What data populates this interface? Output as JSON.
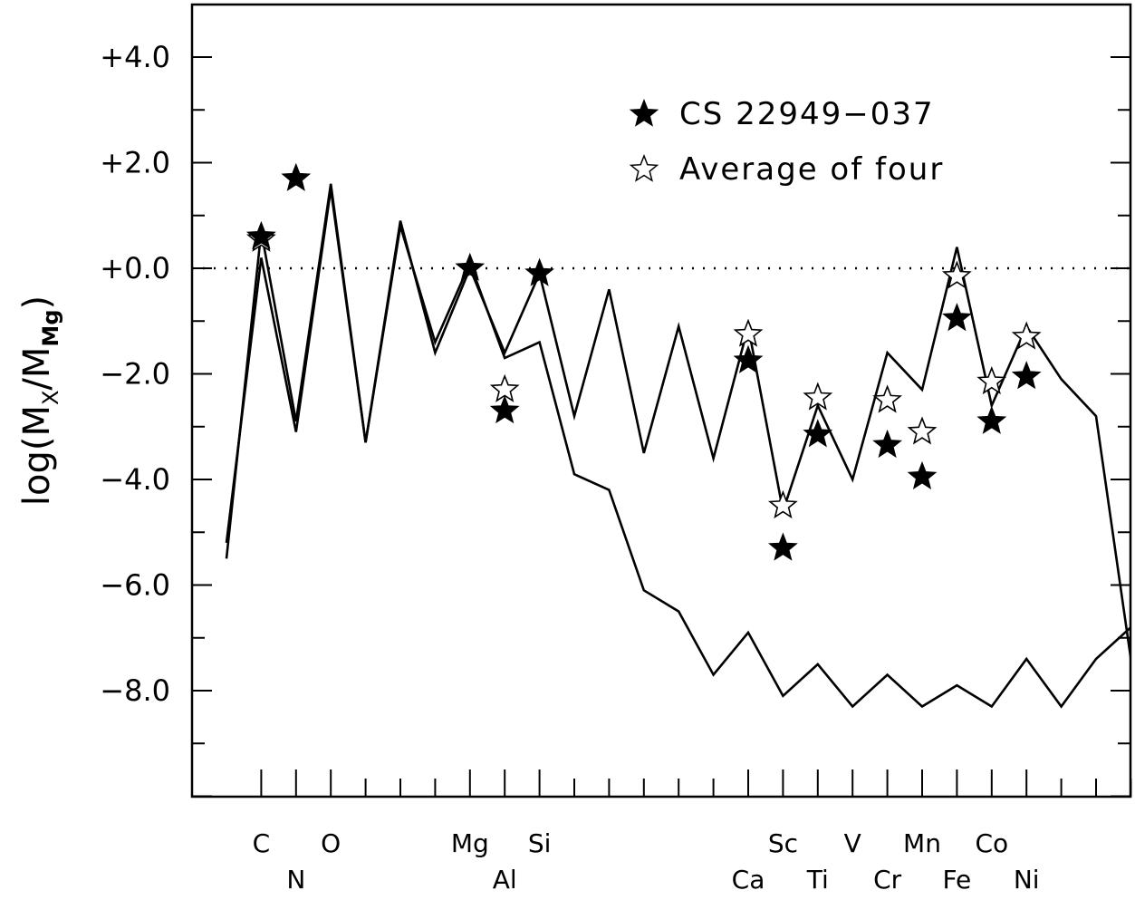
{
  "chart_data": {
    "type": "line",
    "ylabel": {
      "prefix": "log(M",
      "sub_x": "X",
      "mid": "/M",
      "sub_mg": "Mg",
      "suffix": ")"
    },
    "xlabel": "",
    "ylim": [
      -10,
      5
    ],
    "xlim": [
      5,
      32
    ],
    "yticks_major": [
      4,
      2,
      0,
      -2,
      -4,
      -6,
      -8
    ],
    "ytick_labels": [
      "+4.0",
      "+2.0",
      "+0.0",
      "−2.0",
      "−4.0",
      "−6.0",
      "−8.0"
    ],
    "xticks": [
      6,
      7,
      8,
      9,
      10,
      11,
      12,
      13,
      14,
      15,
      16,
      17,
      18,
      19,
      20,
      21,
      22,
      23,
      24,
      25,
      26,
      27,
      28,
      29,
      30,
      31
    ],
    "element_labels": [
      {
        "z": 6,
        "label": "C",
        "row": 1
      },
      {
        "z": 7,
        "label": "N",
        "row": 2
      },
      {
        "z": 8,
        "label": "O",
        "row": 1
      },
      {
        "z": 12,
        "label": "Mg",
        "row": 1
      },
      {
        "z": 13,
        "label": "Al",
        "row": 2
      },
      {
        "z": 14,
        "label": "Si",
        "row": 1
      },
      {
        "z": 20,
        "label": "Ca",
        "row": 2
      },
      {
        "z": 21,
        "label": "Sc",
        "row": 1
      },
      {
        "z": 22,
        "label": "Ti",
        "row": 2
      },
      {
        "z": 23,
        "label": "V",
        "row": 1
      },
      {
        "z": 24,
        "label": "Cr",
        "row": 2
      },
      {
        "z": 25,
        "label": "Mn",
        "row": 1
      },
      {
        "z": 26,
        "label": "Fe",
        "row": 2
      },
      {
        "z": 27,
        "label": "Co",
        "row": 1
      },
      {
        "z": 28,
        "label": "Ni",
        "row": 2
      }
    ],
    "reference_line": {
      "y": 0,
      "style": "dotted"
    },
    "series": [
      {
        "style": "line",
        "points": [
          [
            5,
            -5.2
          ],
          [
            6,
            0.2
          ],
          [
            7,
            -3.1
          ],
          [
            8,
            1.5
          ],
          [
            9,
            -3.3
          ],
          [
            10,
            0.8
          ],
          [
            11,
            -1.4
          ],
          [
            12,
            0.1
          ],
          [
            13,
            -1.7
          ],
          [
            14,
            -1.4
          ],
          [
            15,
            -3.9
          ],
          [
            16,
            -4.2
          ],
          [
            17,
            -6.1
          ],
          [
            18,
            -6.5
          ],
          [
            19,
            -7.7
          ],
          [
            20,
            -6.9
          ],
          [
            21,
            -8.1
          ],
          [
            22,
            -7.5
          ],
          [
            23,
            -8.3
          ],
          [
            24,
            -7.7
          ],
          [
            25,
            -8.3
          ],
          [
            26,
            -7.9
          ],
          [
            27,
            -8.3
          ],
          [
            28,
            -7.4
          ],
          [
            29,
            -8.3
          ],
          [
            30,
            -7.4
          ],
          [
            31,
            -6.8
          ]
        ]
      },
      {
        "style": "line",
        "points": [
          [
            5,
            -5.5
          ],
          [
            6,
            0.7
          ],
          [
            7,
            -2.9
          ],
          [
            8,
            1.6
          ],
          [
            9,
            -3.3
          ],
          [
            10,
            0.9
          ],
          [
            11,
            -1.6
          ],
          [
            12,
            0.0
          ],
          [
            13,
            -1.6
          ],
          [
            14,
            -0.1
          ],
          [
            15,
            -2.8
          ],
          [
            16,
            -0.4
          ],
          [
            17,
            -3.5
          ],
          [
            18,
            -1.1
          ],
          [
            19,
            -3.6
          ],
          [
            20,
            -1.1
          ],
          [
            21,
            -4.6
          ],
          [
            22,
            -2.6
          ],
          [
            23,
            -4.0
          ],
          [
            24,
            -1.6
          ],
          [
            25,
            -2.3
          ],
          [
            26,
            0.4
          ],
          [
            27,
            -2.6
          ],
          [
            28,
            -1.1
          ],
          [
            29,
            -2.1
          ],
          [
            30,
            -2.8
          ],
          [
            31,
            -7.4
          ]
        ]
      },
      {
        "name": "CS 22949−037",
        "style": "filled-star",
        "points": [
          [
            6,
            0.6
          ],
          [
            7,
            1.7
          ],
          [
            12,
            0.0
          ],
          [
            13,
            -2.7
          ],
          [
            14,
            -0.1
          ],
          [
            20,
            -1.75
          ],
          [
            21,
            -5.3
          ],
          [
            22,
            -3.15
          ],
          [
            24,
            -3.35
          ],
          [
            25,
            -3.95
          ],
          [
            26,
            -0.95
          ],
          [
            27,
            -2.9
          ],
          [
            28,
            -2.05
          ]
        ]
      },
      {
        "name": "Average of four",
        "style": "open-star",
        "points": [
          [
            6,
            0.55
          ],
          [
            13,
            -2.3
          ],
          [
            20,
            -1.25
          ],
          [
            21,
            -4.5
          ],
          [
            22,
            -2.45
          ],
          [
            24,
            -2.5
          ],
          [
            25,
            -3.1
          ],
          [
            26,
            -0.15
          ],
          [
            27,
            -2.15
          ],
          [
            28,
            -1.3
          ]
        ]
      }
    ],
    "legend_position": "top-right",
    "colors": {
      "line": "#000000",
      "background": "#ffffff"
    }
  }
}
